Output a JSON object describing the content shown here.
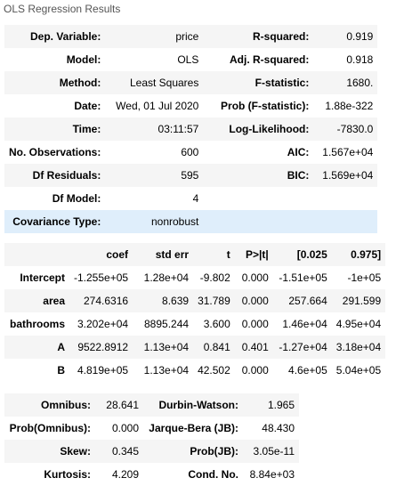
{
  "caption": "OLS Regression Results",
  "summary": [
    [
      "Dep. Variable:",
      "price",
      "R-squared:",
      "0.919"
    ],
    [
      "Model:",
      "OLS",
      "Adj. R-squared:",
      "0.918"
    ],
    [
      "Method:",
      "Least Squares",
      "F-statistic:",
      "1680."
    ],
    [
      "Date:",
      "Wed, 01 Jul 2020",
      "Prob (F-statistic):",
      "1.88e-322"
    ],
    [
      "Time:",
      "03:11:57",
      "Log-Likelihood:",
      "-7830.0"
    ],
    [
      "No. Observations:",
      "600",
      "AIC:",
      "1.567e+04"
    ],
    [
      "Df Residuals:",
      "595",
      "BIC:",
      "1.569e+04"
    ],
    [
      "Df Model:",
      "4",
      "",
      ""
    ],
    [
      "Covariance Type:",
      "nonrobust",
      "",
      ""
    ]
  ],
  "coef_header": [
    "",
    "coef",
    "std err",
    "t",
    "P>|t|",
    "[0.025",
    "0.975]"
  ],
  "coef_rows": [
    [
      "Intercept",
      "-1.255e+05",
      "1.28e+04",
      "-9.802",
      "0.000",
      "-1.51e+05",
      "-1e+05"
    ],
    [
      "area",
      "274.6316",
      "8.639",
      "31.789",
      "0.000",
      "257.664",
      "291.599"
    ],
    [
      "bathrooms",
      "3.202e+04",
      "8895.244",
      "3.600",
      "0.000",
      "1.46e+04",
      "4.95e+04"
    ],
    [
      "A",
      "9522.8912",
      "1.13e+04",
      "0.841",
      "0.401",
      "-1.27e+04",
      "3.18e+04"
    ],
    [
      "B",
      "4.819e+05",
      "1.13e+04",
      "42.502",
      "0.000",
      "4.6e+05",
      "5.04e+05"
    ]
  ],
  "diagnostics": [
    [
      "Omnibus:",
      "28.641",
      "Durbin-Watson:",
      "1.965"
    ],
    [
      "Prob(Omnibus):",
      "0.000",
      "Jarque-Bera (JB):",
      "48.430"
    ],
    [
      "Skew:",
      "0.345",
      "Prob(JB):",
      "3.05e-11"
    ],
    [
      "Kurtosis:",
      "4.209",
      "Cond. No.",
      "8.84e+03"
    ]
  ]
}
